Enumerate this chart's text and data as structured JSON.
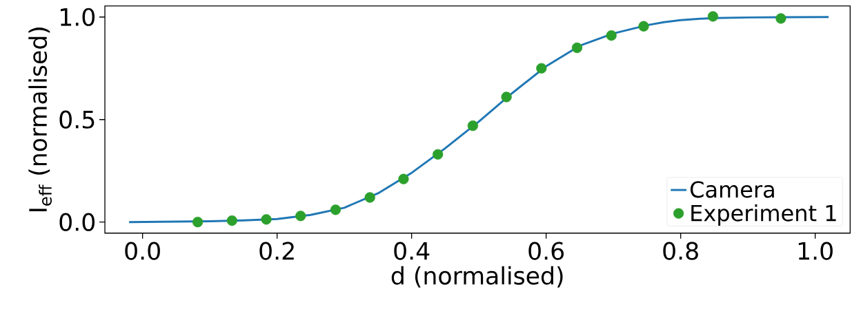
{
  "chart_data": {
    "type": "line",
    "xlabel": "d (normalised)",
    "ylabel": "I$_{eff}$ (normalised)",
    "xlim": [
      -0.056,
      1.052
    ],
    "ylim": [
      -0.054,
      1.054
    ],
    "xticks": [
      {
        "value": 0,
        "label": "0.0"
      },
      0.2,
      0.4,
      0.6,
      0.8,
      {
        "value": 1,
        "label": "1.0"
      }
    ],
    "yticks": [
      {
        "value": 0,
        "label": "0.0"
      },
      0.5,
      {
        "value": 1,
        "label": "1.0"
      }
    ],
    "legend": "bottom right",
    "grid": false,
    "series": [
      {
        "name": "Camera",
        "type": "line",
        "color": "#1f77b4",
        "marker": "none",
        "line_style": "solid",
        "x": [
          -0.02,
          0.05,
          0.1,
          0.15,
          0.2,
          0.25,
          0.3,
          0.35,
          0.4,
          0.45,
          0.5,
          0.55,
          0.6,
          0.65,
          0.7,
          0.75,
          0.775,
          0.8,
          0.825,
          0.85,
          0.9,
          0.95,
          1.02
        ],
        "values": [
          0.0,
          0.002,
          0.004,
          0.008,
          0.015,
          0.035,
          0.07,
          0.14,
          0.24,
          0.36,
          0.49,
          0.63,
          0.76,
          0.86,
          0.92,
          0.96,
          0.975,
          0.985,
          0.991,
          0.995,
          0.998,
          0.999,
          1.0
        ]
      },
      {
        "name": "Experiment 1",
        "type": "scatter",
        "color": "#2ca02c",
        "marker": "circle",
        "x": [
          0.082,
          0.133,
          0.184,
          0.235,
          0.287,
          0.338,
          0.388,
          0.439,
          0.491,
          0.541,
          0.593,
          0.646,
          0.697,
          0.745,
          0.848,
          0.949
        ],
        "values": [
          0.0,
          0.007,
          0.013,
          0.03,
          0.06,
          0.12,
          0.21,
          0.33,
          0.47,
          0.61,
          0.75,
          0.85,
          0.91,
          0.955,
          1.003,
          0.993
        ]
      }
    ]
  }
}
